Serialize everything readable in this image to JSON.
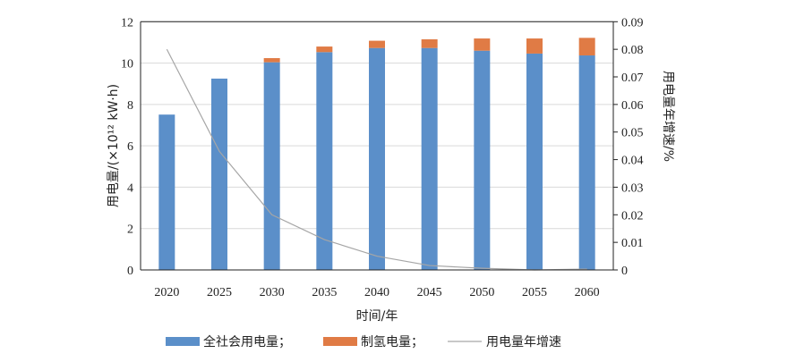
{
  "chart_data": {
    "type": "bar+line",
    "categories": [
      "2020",
      "2025",
      "2030",
      "2035",
      "2040",
      "2045",
      "2050",
      "2055",
      "2060"
    ],
    "series": [
      {
        "name": "全社会用电量；",
        "type": "stacked-bar",
        "axis": "left",
        "color": "#5b8fc9",
        "values": [
          7.51,
          9.25,
          10.04,
          10.53,
          10.73,
          10.73,
          10.6,
          10.46,
          10.37
        ]
      },
      {
        "name": "制氢电量；",
        "type": "stacked-bar",
        "axis": "left",
        "color": "#e07b45",
        "values": [
          0,
          0,
          0.2,
          0.27,
          0.35,
          0.42,
          0.59,
          0.73,
          0.85
        ]
      },
      {
        "name": "用电量年增速",
        "type": "line",
        "axis": "right",
        "color": "#a6a6a6",
        "values": [
          0.08,
          0.043,
          0.02,
          0.011,
          0.005,
          0.0016,
          0.0006,
          0.0,
          0.0003
        ]
      }
    ],
    "xlabel": "时间/年",
    "ylabel": "用电量/(×10¹² kW·h)",
    "y2label": "用电量年增速/%",
    "ylim": [
      0,
      12
    ],
    "yticks": [
      "0",
      "2",
      "4",
      "6",
      "8",
      "10",
      "12"
    ],
    "y2lim": [
      0,
      0.09
    ],
    "y2ticks": [
      "0",
      "0.01",
      "0.02",
      "0.03",
      "0.04",
      "0.05",
      "0.06",
      "0.07",
      "0.08",
      "0.09"
    ],
    "grid": true,
    "legend": "bottom"
  }
}
